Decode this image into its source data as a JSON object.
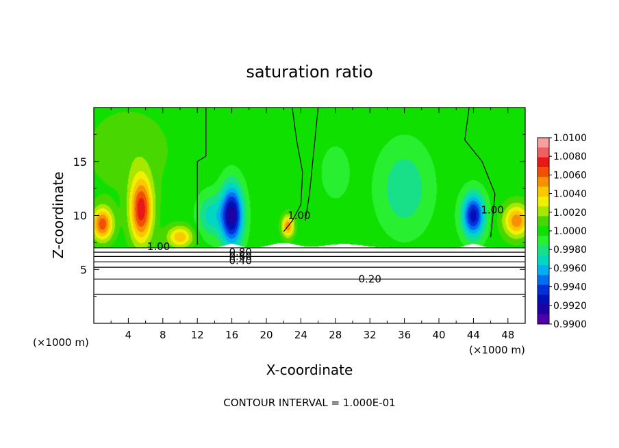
{
  "chart_data": {
    "type": "heatmap",
    "title": "saturation ratio",
    "xlabel": "X-coordinate",
    "ylabel": "Z-coordinate",
    "x_unit_left": "(×1000 m)",
    "x_unit_right": "(×1000 m)",
    "footer": "CONTOUR INTERVAL = 1.000E-01",
    "xlim": [
      0,
      50
    ],
    "ylim": [
      0,
      20
    ],
    "x_ticks": [
      "4",
      "8",
      "12",
      "16",
      "20",
      "24",
      "28",
      "32",
      "36",
      "40",
      "44",
      "48"
    ],
    "y_ticks": [
      "5",
      "10",
      "15"
    ],
    "colorbar": {
      "min": 0.99,
      "max": 1.01,
      "labels": [
        "1.0100",
        "1.0080",
        "1.0060",
        "1.0040",
        "1.0020",
        "1.0000",
        "0.9980",
        "0.9960",
        "0.9940",
        "0.9920",
        "0.9900"
      ],
      "colors": [
        "#f8a0a0",
        "#f06060",
        "#e81818",
        "#f05000",
        "#f89000",
        "#f8c800",
        "#f0f000",
        "#a8e800",
        "#48d800",
        "#10e000",
        "#28f030",
        "#18e088",
        "#00d8c0",
        "#00b0f0",
        "#0070f0",
        "#0030d8",
        "#0010b8",
        "#2000a0",
        "#5000a8"
      ]
    },
    "background_value": 1.0,
    "features": [
      {
        "type": "supersat",
        "x": 5.5,
        "z": 10.5,
        "sx": 1.3,
        "sz": 3.0,
        "amp": 0.0075
      },
      {
        "type": "supersat",
        "x": 1.0,
        "z": 9.2,
        "sx": 1.2,
        "sz": 1.5,
        "amp": 0.0065
      },
      {
        "type": "supersat",
        "x": 10.0,
        "z": 8.0,
        "sx": 1.5,
        "sz": 1.0,
        "amp": 0.0045
      },
      {
        "type": "supersat",
        "x": 22.5,
        "z": 9.0,
        "sx": 0.7,
        "sz": 1.0,
        "amp": 0.0055
      },
      {
        "type": "supersat",
        "x": 49.0,
        "z": 9.5,
        "sx": 1.5,
        "sz": 1.5,
        "amp": 0.0055
      },
      {
        "type": "supersat",
        "x": 4.0,
        "z": 16.0,
        "sx": 5.0,
        "sz": 4.0,
        "amp": 0.0012
      },
      {
        "type": "subsat",
        "x": 16.0,
        "z": 10.0,
        "sx": 1.3,
        "sz": 2.8,
        "amp": -0.0085
      },
      {
        "type": "subsat",
        "x": 13.5,
        "z": 10.0,
        "sx": 1.5,
        "sz": 2.0,
        "amp": -0.003
      },
      {
        "type": "subsat",
        "x": 44.0,
        "z": 10.0,
        "sx": 1.3,
        "sz": 2.0,
        "amp": -0.0075
      },
      {
        "type": "subsat",
        "x": 36.0,
        "z": 12.5,
        "sx": 3.0,
        "sz": 4.0,
        "amp": -0.0025
      },
      {
        "type": "subsat",
        "x": 28.0,
        "z": 14.0,
        "sx": 2.0,
        "sz": 3.0,
        "amp": -0.001
      }
    ],
    "contours": [
      {
        "label": "1.00",
        "label_x": 7.5,
        "label_z": 7.1,
        "points": [
          [
            0.0,
            7.0
          ],
          [
            50.0,
            7.0
          ]
        ]
      },
      {
        "label": "",
        "label_x": 0,
        "label_z": 0,
        "points": [
          [
            12.0,
            7.3
          ],
          [
            12.0,
            15.0
          ],
          [
            13.0,
            15.5
          ],
          [
            13.0,
            20.0
          ]
        ]
      },
      {
        "label": "1.00",
        "label_x": 23.8,
        "label_z": 10.0,
        "points": [
          [
            22.0,
            8.5
          ],
          [
            23.0,
            9.5
          ],
          [
            24.0,
            11.0
          ],
          [
            24.2,
            14.0
          ],
          [
            23.5,
            17.0
          ],
          [
            23.0,
            20.0
          ]
        ]
      },
      {
        "label": "",
        "label_x": 0,
        "label_z": 0,
        "points": [
          [
            24.5,
            9.5
          ],
          [
            25.0,
            12.0
          ],
          [
            25.5,
            16.0
          ],
          [
            26.0,
            20.0
          ]
        ]
      },
      {
        "label": "1.00",
        "label_x": 46.2,
        "label_z": 10.5,
        "points": [
          [
            46.0,
            8.0
          ],
          [
            46.5,
            12.0
          ],
          [
            45.0,
            15.0
          ],
          [
            43.0,
            17.0
          ],
          [
            43.5,
            20.0
          ]
        ]
      },
      {
        "label": "0.80",
        "label_x": 17.0,
        "label_z": 6.6,
        "points": [
          [
            0.0,
            6.6
          ],
          [
            50.0,
            6.6
          ]
        ]
      },
      {
        "label": "0.60",
        "label_x": 17.0,
        "label_z": 6.2,
        "points": [
          [
            0.0,
            6.2
          ],
          [
            50.0,
            6.2
          ]
        ]
      },
      {
        "label": "0.40",
        "label_x": 17.0,
        "label_z": 5.8,
        "points": [
          [
            0.0,
            5.7
          ],
          [
            50.0,
            5.7
          ]
        ]
      },
      {
        "label": "",
        "label_x": 0,
        "label_z": 0,
        "points": [
          [
            0.0,
            5.2
          ],
          [
            50.0,
            5.2
          ]
        ]
      },
      {
        "label": "0.20",
        "label_x": 32.0,
        "label_z": 4.1,
        "points": [
          [
            0.0,
            4.1
          ],
          [
            50.0,
            4.1
          ]
        ]
      },
      {
        "label": "",
        "label_x": 0,
        "label_z": 0,
        "points": [
          [
            0.0,
            2.7
          ],
          [
            50.0,
            2.7
          ]
        ]
      }
    ]
  }
}
